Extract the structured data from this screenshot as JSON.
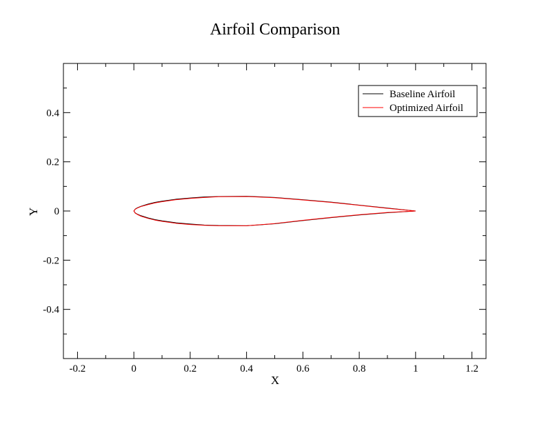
{
  "chart_data": {
    "type": "line",
    "title": "Airfoil Comparison",
    "xlabel": "X",
    "ylabel": "Y",
    "xlim": [
      -0.25,
      1.25
    ],
    "ylim": [
      -0.6,
      0.6
    ],
    "x_ticks": [
      -0.2,
      0,
      0.2,
      0.4,
      0.6,
      0.8,
      1,
      1.2
    ],
    "x_tick_labels": [
      "-0.2",
      "0",
      "0.2",
      "0.4",
      "0.6",
      "0.8",
      "1",
      "1.2"
    ],
    "y_ticks": [
      -0.4,
      -0.2,
      0,
      0.2,
      0.4
    ],
    "y_tick_labels": [
      "-0.4",
      "-0.2",
      "0",
      "0.2",
      "0.4"
    ],
    "grid": false,
    "legend_position": "top-right",
    "series": [
      {
        "name": "Baseline Airfoil",
        "color": "#000000",
        "x": [
          1.0,
          0.9,
          0.8,
          0.7,
          0.6,
          0.5,
          0.4,
          0.3,
          0.25,
          0.2,
          0.15,
          0.1,
          0.075,
          0.05,
          0.025,
          0.0125,
          0.005,
          0.0,
          0.005,
          0.0125,
          0.025,
          0.05,
          0.075,
          0.1,
          0.15,
          0.2,
          0.25,
          0.3,
          0.4,
          0.5,
          0.6,
          0.7,
          0.8,
          0.9,
          1.0
        ],
        "y": [
          0.0,
          0.012,
          0.024,
          0.036,
          0.046,
          0.055,
          0.06,
          0.059,
          0.057,
          0.053,
          0.048,
          0.04,
          0.035,
          0.028,
          0.019,
          0.013,
          0.008,
          0.0,
          -0.008,
          -0.013,
          -0.019,
          -0.028,
          -0.035,
          -0.04,
          -0.048,
          -0.053,
          -0.057,
          -0.059,
          -0.06,
          -0.052,
          -0.039,
          -0.027,
          -0.016,
          -0.007,
          0.0
        ]
      },
      {
        "name": "Optimized Airfoil",
        "color": "#ff0000",
        "x": [
          1.0,
          0.9,
          0.8,
          0.7,
          0.6,
          0.5,
          0.4,
          0.3,
          0.25,
          0.2,
          0.15,
          0.1,
          0.075,
          0.05,
          0.025,
          0.0125,
          0.005,
          0.0,
          0.005,
          0.0125,
          0.025,
          0.05,
          0.075,
          0.1,
          0.15,
          0.2,
          0.25,
          0.3,
          0.4,
          0.5,
          0.6,
          0.7,
          0.8,
          0.9,
          1.0
        ],
        "y": [
          0.0,
          0.011,
          0.023,
          0.035,
          0.045,
          0.054,
          0.059,
          0.058,
          0.055,
          0.051,
          0.046,
          0.038,
          0.033,
          0.026,
          0.018,
          0.012,
          0.007,
          0.0,
          -0.009,
          -0.014,
          -0.021,
          -0.03,
          -0.037,
          -0.042,
          -0.05,
          -0.055,
          -0.058,
          -0.06,
          -0.06,
          -0.051,
          -0.038,
          -0.026,
          -0.015,
          -0.006,
          0.0
        ]
      }
    ]
  }
}
